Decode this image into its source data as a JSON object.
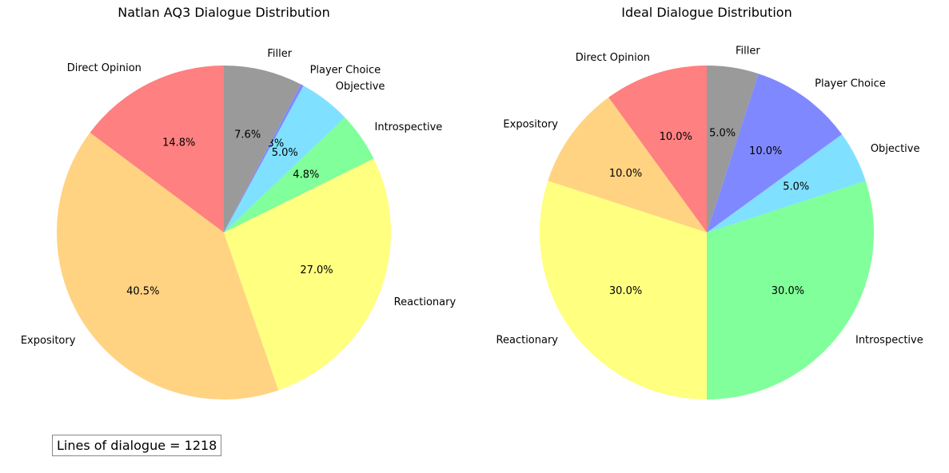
{
  "chart_data": [
    {
      "type": "pie",
      "title": "Natlan AQ3 Dialogue Distribution",
      "start_angle_deg": 90,
      "direction": "counterclockwise",
      "slices": [
        {
          "label": "Direct Opinion",
          "value": 14.8,
          "pct_label": "14.8%",
          "color": "#ff8080"
        },
        {
          "label": "Expository",
          "value": 40.5,
          "pct_label": "40.5%",
          "color": "#ffd382"
        },
        {
          "label": "Reactionary",
          "value": 27.0,
          "pct_label": "27.0%",
          "color": "#ffff80"
        },
        {
          "label": "Introspective",
          "value": 4.8,
          "pct_label": "4.8%",
          "color": "#80ff9a"
        },
        {
          "label": "Objective",
          "value": 5.0,
          "pct_label": "5.0%",
          "color": "#80e0ff"
        },
        {
          "label": "Player Choice",
          "value": 0.3,
          "pct_label": "0.3%",
          "color": "#8088ff"
        },
        {
          "label": "Filler",
          "value": 7.6,
          "pct_label": "7.6%",
          "color": "#9a9a9a"
        }
      ]
    },
    {
      "type": "pie",
      "title": "Ideal Dialogue Distribution",
      "start_angle_deg": 90,
      "direction": "counterclockwise",
      "slices": [
        {
          "label": "Direct Opinion",
          "value": 10.0,
          "pct_label": "10.0%",
          "color": "#ff8080"
        },
        {
          "label": "Expository",
          "value": 10.0,
          "pct_label": "10.0%",
          "color": "#ffd382"
        },
        {
          "label": "Reactionary",
          "value": 30.0,
          "pct_label": "30.0%",
          "color": "#ffff80"
        },
        {
          "label": "Introspective",
          "value": 30.0,
          "pct_label": "30.0%",
          "color": "#80ff9a"
        },
        {
          "label": "Objective",
          "value": 5.0,
          "pct_label": "5.0%",
          "color": "#80e0ff"
        },
        {
          "label": "Player Choice",
          "value": 10.0,
          "pct_label": "10.0%",
          "color": "#8088ff"
        },
        {
          "label": "Filler",
          "value": 5.0,
          "pct_label": "5.0%",
          "color": "#9a9a9a"
        }
      ]
    }
  ],
  "annotation": {
    "text": "Lines of dialogue = 1218"
  }
}
